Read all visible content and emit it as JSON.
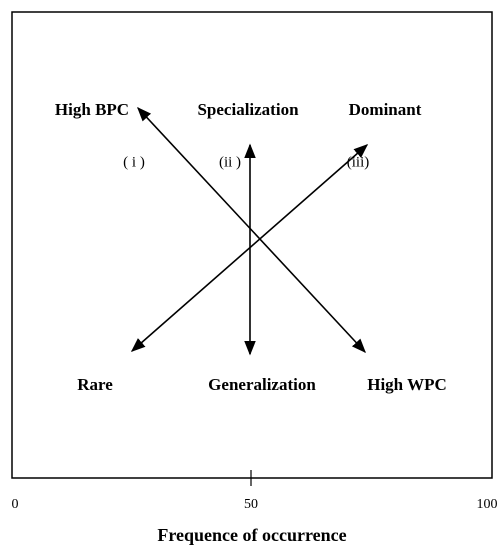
{
  "nodes": [
    {
      "label": "High BPC"
    },
    {
      "label": "Specialization"
    },
    {
      "label": "Dominant"
    },
    {
      "label": "Rare"
    },
    {
      "label": "Generalization"
    },
    {
      "label": "High WPC"
    }
  ],
  "arrow_labels": [
    "( i )",
    "(ii )",
    "(iii)"
  ],
  "axis": {
    "label": "Frequence of occurrence",
    "xlim": [
      0,
      100
    ],
    "ticks": [
      0,
      50,
      100
    ]
  }
}
